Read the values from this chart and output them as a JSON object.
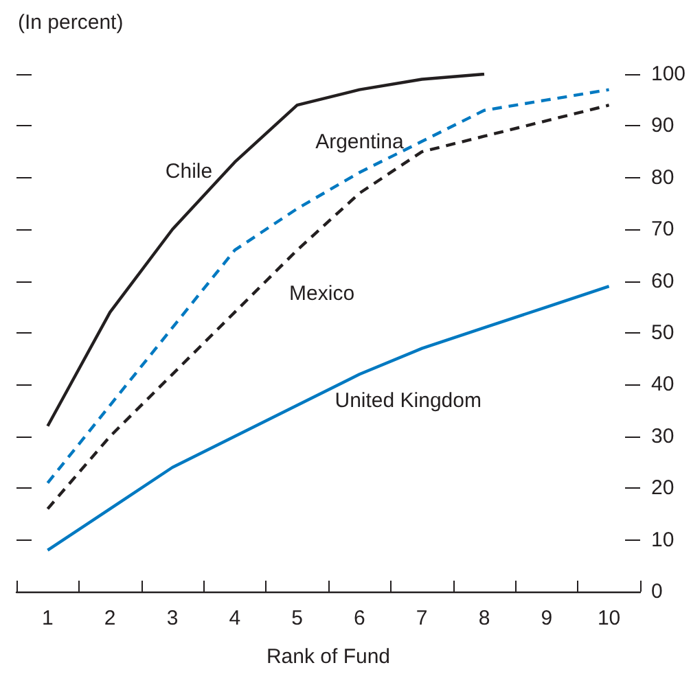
{
  "chart_data": {
    "type": "line",
    "subtitle": "(In percent)",
    "xlabel": "Rank of Fund",
    "categories": [
      "1",
      "2",
      "3",
      "4",
      "5",
      "6",
      "7",
      "8",
      "9",
      "10"
    ],
    "series": [
      {
        "name": "Chile",
        "color": "#231f20",
        "line_style": "solid",
        "values": [
          32,
          54,
          70,
          83,
          94,
          97,
          99,
          100,
          null,
          null
        ]
      },
      {
        "name": "Argentina",
        "color": "#0079c1",
        "line_style": "dashed",
        "values": [
          21,
          36,
          51,
          66,
          74,
          81,
          87,
          93,
          95,
          97
        ]
      },
      {
        "name": "Mexico",
        "color": "#231f20",
        "line_style": "dashed",
        "values": [
          16,
          30,
          42,
          54,
          66,
          77,
          85,
          88,
          91,
          94
        ]
      },
      {
        "name": "United Kingdom",
        "color": "#0079c1",
        "line_style": "solid",
        "values": [
          8,
          16,
          24,
          30,
          36,
          42,
          47,
          51,
          55,
          59
        ]
      }
    ],
    "ylim": [
      0,
      100
    ],
    "yticks": [
      0,
      10,
      20,
      30,
      40,
      50,
      60,
      70,
      80,
      90,
      100
    ],
    "grid": false,
    "legend": false,
    "marker": "none"
  }
}
